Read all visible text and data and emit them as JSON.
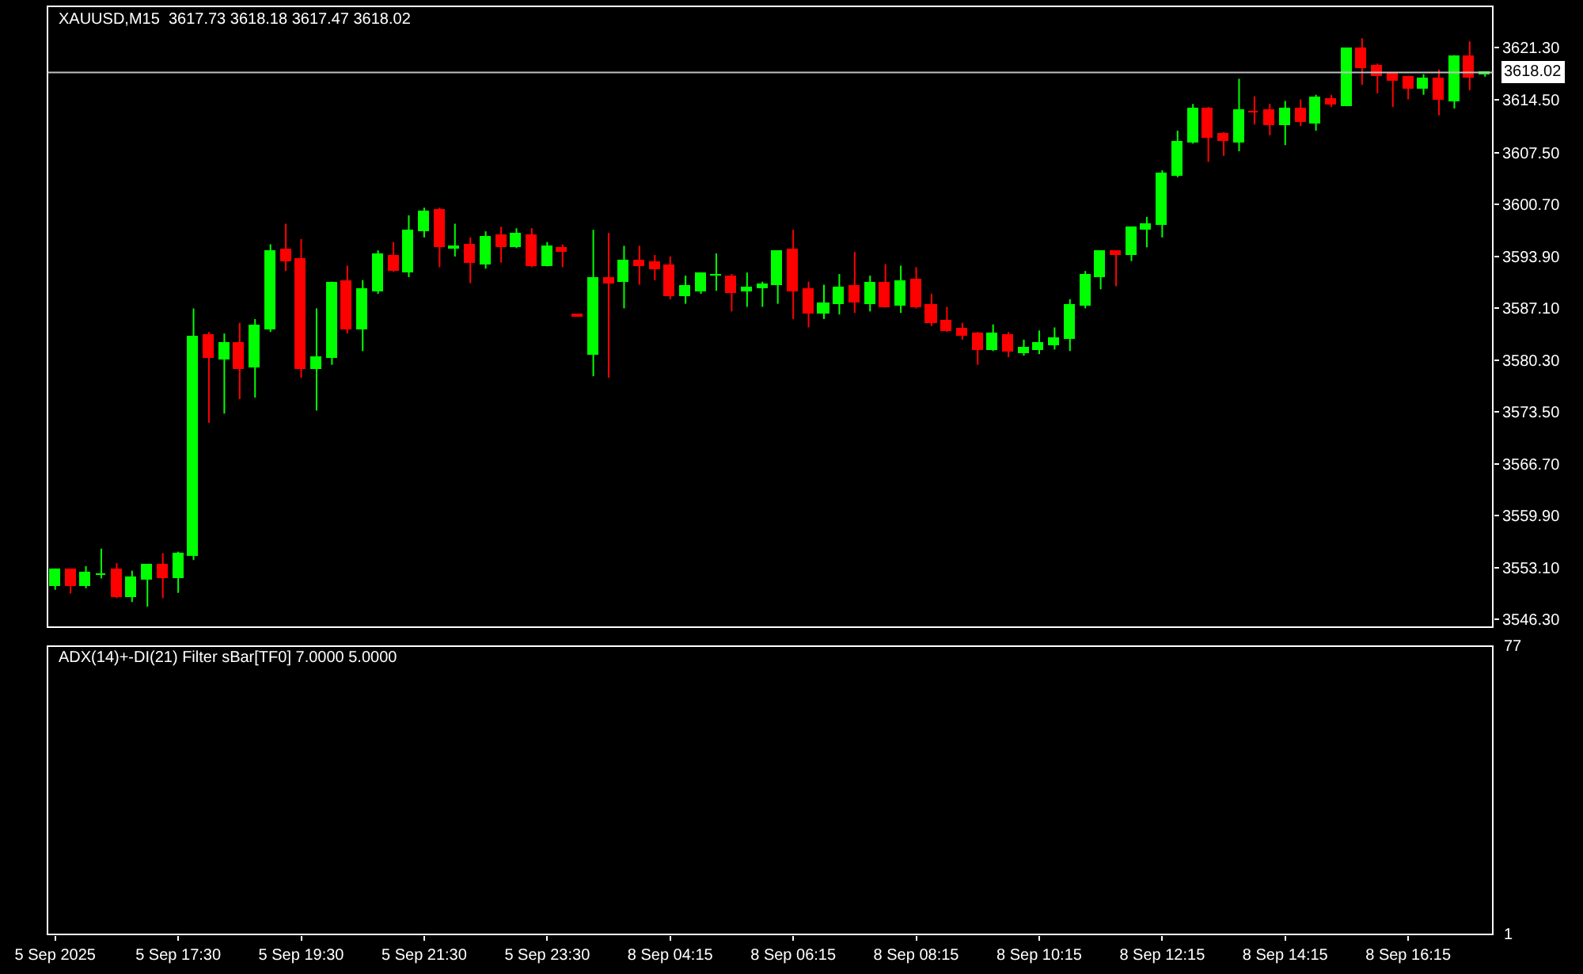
{
  "chart_data": [
    {
      "type": "candlestick",
      "title": "XAUUSD,M15  3617.73 3618.18 3617.47 3618.02",
      "grid": false,
      "colors": [
        "#00ff00",
        "#ff0000",
        "#00ff00",
        "#00ff00",
        "#ff0000",
        "#00ff00",
        "#00ff00",
        "#ff0000",
        "#00ff00",
        "#00ff00",
        "#ff0000",
        "#00ff00",
        "#ff0000",
        "#00ff00",
        "#00ff00",
        "#ff0000",
        "#ff0000",
        "#00ff00",
        "#00ff00",
        "#ff0000",
        "#00ff00",
        "#00ff00",
        "#ff0000",
        "#00ff00",
        "#00ff00",
        "#ff0000",
        "#00ff00",
        "#ff0000",
        "#00ff00",
        "#ff0000",
        "#00ff00",
        "#ff0000",
        "#00ff00",
        "#ff0000",
        "#ff0000",
        "#00ff00",
        "#ff0000",
        "#00ff00",
        "#ff0000",
        "#ff0000",
        "#ff0000",
        "#00ff00",
        "#00ff00",
        "#00ff00",
        "#ff0000",
        "#00ff00",
        "#00ff00",
        "#00ff00",
        "#ff0000",
        "#ff0000",
        "#00ff00",
        "#00ff00",
        "#ff0000",
        "#00ff00",
        "#ff0000",
        "#00ff00",
        "#ff0000",
        "#ff0000",
        "#ff0000",
        "#ff0000",
        "#ff0000",
        "#00ff00",
        "#ff0000",
        "#00ff00",
        "#00ff00",
        "#00ff00",
        "#00ff00",
        "#00ff00",
        "#00ff00",
        "#ff0000",
        "#00ff00",
        "#00ff00",
        "#00ff00",
        "#00ff00",
        "#00ff00",
        "#ff0000",
        "#ff0000",
        "#00ff00",
        "#ff0000",
        "#ff0000",
        "#00ff00",
        "#ff0000",
        "#00ff00",
        "#ff0000",
        "#00ff00",
        "#ff0000",
        "#ff0000",
        "#ff0000",
        "#ff0000",
        "#00ff00",
        "#ff0000",
        "#00ff00",
        "#ff0000",
        "#00ff00"
      ],
      "categories": [
        null,
        null,
        null,
        null,
        null,
        null,
        null,
        null,
        null,
        null,
        null,
        null,
        null,
        null,
        null,
        null,
        null,
        null,
        null,
        null,
        null,
        null,
        null,
        null,
        null,
        null,
        null,
        null,
        null,
        null,
        null,
        null,
        null,
        null,
        null,
        null,
        null,
        null,
        null,
        null,
        null,
        null,
        null,
        null,
        null,
        null,
        null,
        null,
        null,
        null,
        null,
        null,
        null,
        null,
        null,
        null,
        null,
        null,
        null,
        null,
        null,
        null,
        null,
        null,
        null,
        null,
        null,
        null,
        null,
        null,
        null,
        null,
        null,
        null,
        null,
        null,
        null,
        null,
        null,
        null,
        null,
        null,
        null,
        null,
        null,
        null,
        null,
        null,
        null,
        null,
        null,
        null,
        null,
        null
      ],
      "ohlc": [
        [
          3550.8,
          3553.0,
          3550.2,
          3552.8
        ],
        [
          3552.7,
          3552.7,
          3549.7,
          3550.6
        ],
        [
          3550.6,
          3553.3,
          3550.4,
          3552.3
        ],
        [
          3552.1,
          3555.6,
          3551.7,
          3552.2
        ],
        [
          3552.7,
          3553.7,
          3549.1,
          3549.2
        ],
        [
          3549.2,
          3552.7,
          3548.6,
          3551.7
        ],
        [
          3551.5,
          3553.3,
          3548.0,
          3553.3
        ],
        [
          3553.5,
          3555.0,
          3549.1,
          3551.7
        ],
        [
          3551.7,
          3555.2,
          3549.8,
          3554.8
        ],
        [
          3554.6,
          3587.1,
          3554.1,
          3583.4
        ],
        [
          3583.6,
          3584.0,
          3572.1,
          3580.5
        ],
        [
          3580.3,
          3583.8,
          3573.3,
          3582.4
        ],
        [
          3582.4,
          3585.2,
          3575.2,
          3579.1
        ],
        [
          3579.3,
          3585.7,
          3575.4,
          3584.8
        ],
        [
          3584.4,
          3595.5,
          3584.0,
          3594.5
        ],
        [
          3594.7,
          3598.2,
          3592.0,
          3593.3
        ],
        [
          3593.5,
          3596.2,
          3578.0,
          3579.1
        ],
        [
          3579.1,
          3587.1,
          3573.7,
          3580.7
        ],
        [
          3580.5,
          3590.6,
          3579.7,
          3590.4
        ],
        [
          3590.6,
          3592.7,
          3583.8,
          3584.4
        ],
        [
          3584.4,
          3590.8,
          3581.5,
          3589.6
        ],
        [
          3589.4,
          3594.7,
          3589.0,
          3594.1
        ],
        [
          3593.9,
          3595.8,
          3591.9,
          3592.0
        ],
        [
          3591.8,
          3599.3,
          3591.2,
          3597.2
        ],
        [
          3597.2,
          3600.3,
          3596.4,
          3599.7
        ],
        [
          3599.9,
          3600.3,
          3592.5,
          3595.1
        ],
        [
          3595.0,
          3598.2,
          3593.9,
          3595.1
        ],
        [
          3595.3,
          3596.4,
          3590.4,
          3593.1
        ],
        [
          3592.9,
          3597.2,
          3592.3,
          3596.4
        ],
        [
          3596.6,
          3597.8,
          3593.1,
          3595.1
        ],
        [
          3595.1,
          3597.6,
          3595.0,
          3596.8
        ],
        [
          3596.6,
          3597.6,
          3592.5,
          3592.7
        ],
        [
          3592.7,
          3595.8,
          3592.6,
          3595.1
        ],
        [
          3594.9,
          3595.5,
          3592.5,
          3594.6
        ],
        [
          3586.2,
          3586.2,
          3586.1,
          3586.1
        ],
        [
          3581.1,
          3597.4,
          3578.2,
          3591.0
        ],
        [
          3591.0,
          3597.0,
          3578.0,
          3590.4
        ],
        [
          3590.6,
          3595.3,
          3587.1,
          3593.3
        ],
        [
          3593.3,
          3595.3,
          3590.2,
          3592.7
        ],
        [
          3593.1,
          3594.1,
          3590.8,
          3592.3
        ],
        [
          3592.7,
          3593.9,
          3588.3,
          3588.8
        ],
        [
          3588.8,
          3591.4,
          3587.7,
          3590.0
        ],
        [
          3589.4,
          3591.6,
          3589.0,
          3591.6
        ],
        [
          3591.3,
          3594.3,
          3589.4,
          3591.4
        ],
        [
          3591.2,
          3591.6,
          3586.7,
          3589.2
        ],
        [
          3589.4,
          3591.8,
          3587.3,
          3589.8
        ],
        [
          3589.8,
          3590.6,
          3587.3,
          3590.2
        ],
        [
          3590.2,
          3594.7,
          3587.7,
          3594.5
        ],
        [
          3594.7,
          3597.4,
          3585.7,
          3589.4
        ],
        [
          3589.6,
          3590.6,
          3584.6,
          3586.5
        ],
        [
          3586.5,
          3590.2,
          3585.7,
          3587.7
        ],
        [
          3587.7,
          3591.6,
          3586.3,
          3589.8
        ],
        [
          3590.0,
          3594.5,
          3586.5,
          3587.9
        ],
        [
          3587.7,
          3591.4,
          3586.7,
          3590.4
        ],
        [
          3590.4,
          3592.9,
          3587.2,
          3587.3
        ],
        [
          3587.5,
          3592.7,
          3586.5,
          3590.6
        ],
        [
          3590.8,
          3592.5,
          3587.1,
          3587.3
        ],
        [
          3587.5,
          3589.0,
          3584.8,
          3585.2
        ],
        [
          3585.4,
          3587.3,
          3584.0,
          3584.2
        ],
        [
          3584.4,
          3585.2,
          3583.0,
          3583.6
        ],
        [
          3583.8,
          3584.0,
          3579.7,
          3581.7
        ],
        [
          3581.7,
          3585.0,
          3581.5,
          3583.8
        ],
        [
          3583.6,
          3584.0,
          3580.7,
          3581.5
        ],
        [
          3581.3,
          3583.0,
          3580.9,
          3581.9
        ],
        [
          3581.7,
          3584.2,
          3581.1,
          3582.4
        ],
        [
          3582.2,
          3584.6,
          3581.7,
          3583.0
        ],
        [
          3583.0,
          3588.3,
          3581.5,
          3587.5
        ],
        [
          3587.5,
          3592.0,
          3587.1,
          3591.4
        ],
        [
          3591.2,
          3594.7,
          3589.6,
          3594.5
        ],
        [
          3594.5,
          3594.7,
          3590.0,
          3594.1
        ],
        [
          3594.1,
          3597.6,
          3593.3,
          3597.6
        ],
        [
          3597.4,
          3599.1,
          3595.1,
          3598.0
        ],
        [
          3598.0,
          3605.2,
          3596.4,
          3604.6
        ],
        [
          3604.4,
          3610.4,
          3604.3,
          3608.9
        ],
        [
          3608.9,
          3613.9,
          3608.7,
          3613.3
        ],
        [
          3613.3,
          3613.5,
          3606.3,
          3609.4
        ],
        [
          3609.8,
          3610.2,
          3607.1,
          3609.1
        ],
        [
          3608.9,
          3617.2,
          3607.7,
          3612.9
        ],
        [
          3612.8,
          3614.9,
          3611.2,
          3612.7
        ],
        [
          3612.9,
          3613.9,
          3609.8,
          3611.2
        ],
        [
          3611.2,
          3614.3,
          3608.5,
          3613.1
        ],
        [
          3613.1,
          3614.5,
          3611.0,
          3611.6
        ],
        [
          3611.4,
          3615.1,
          3610.4,
          3614.7
        ],
        [
          3614.5,
          3615.1,
          3613.5,
          3613.9
        ],
        [
          3613.7,
          3621.3,
          3613.6,
          3621.1
        ],
        [
          3621.1,
          3622.5,
          3616.4,
          3618.6
        ],
        [
          3618.8,
          3619.2,
          3615.3,
          3617.6
        ],
        [
          3617.8,
          3617.8,
          3613.5,
          3617.0
        ],
        [
          3617.4,
          3617.6,
          3614.5,
          3615.9
        ],
        [
          3615.9,
          3617.8,
          3615.1,
          3617.2
        ],
        [
          3617.2,
          3618.4,
          3612.4,
          3614.5
        ],
        [
          3614.3,
          3620.3,
          3613.3,
          3620.1
        ],
        [
          3620.1,
          3622.1,
          3615.7,
          3617.4
        ],
        [
          3617.73,
          3618.18,
          3617.47,
          3618.02
        ]
      ],
      "ylim": [
        3545.3,
        3626.7
      ],
      "yticks": [
        {
          "value": 3546.3,
          "label": "3546.30"
        },
        {
          "value": 3553.1,
          "label": "3553.10"
        },
        {
          "value": 3559.9,
          "label": "3559.90"
        },
        {
          "value": 3566.7,
          "label": "3566.70"
        },
        {
          "value": 3573.5,
          "label": "3573.50"
        },
        {
          "value": 3580.3,
          "label": "3580.30"
        },
        {
          "value": 3587.1,
          "label": "3587.10"
        },
        {
          "value": 3593.9,
          "label": "3593.90"
        },
        {
          "value": 3600.7,
          "label": "3600.70"
        },
        {
          "value": 3607.5,
          "label": "3607.50"
        },
        {
          "value": 3614.5,
          "label": "3614.50"
        },
        {
          "value": 3621.3,
          "label": "3621.30"
        }
      ],
      "ref_lines": [
        {
          "axis": "y",
          "value": 3618.02,
          "label": "3618.02",
          "color": "#c0c0c0"
        }
      ]
    },
    {
      "type": "other",
      "title": "ADX(14)+-DI(21) Filter sBar[TF0] 7.0000 5.0000",
      "categories": [
        "5 Sep 2025",
        null,
        null,
        null,
        null,
        null,
        null,
        null,
        "5 Sep 17:30",
        null,
        null,
        null,
        null,
        null,
        null,
        null,
        "5 Sep 19:30",
        null,
        null,
        null,
        null,
        null,
        null,
        null,
        "5 Sep 21:30",
        null,
        null,
        null,
        null,
        null,
        null,
        null,
        "5 Sep 23:30",
        null,
        null,
        null,
        null,
        null,
        null,
        null,
        "8 Sep 04:15",
        null,
        null,
        null,
        null,
        null,
        null,
        null,
        "8 Sep 06:15",
        null,
        null,
        null,
        null,
        null,
        null,
        null,
        "8 Sep 08:15",
        null,
        null,
        null,
        null,
        null,
        null,
        null,
        "8 Sep 10:15",
        null,
        null,
        null,
        null,
        null,
        null,
        null,
        "8 Sep 12:15",
        null,
        null,
        null,
        null,
        null,
        null,
        null,
        "8 Sep 14:15",
        null,
        null,
        null,
        null,
        null,
        null,
        null,
        "8 Sep 16:15",
        null,
        null,
        null,
        null,
        null
      ],
      "annotations": [
        "77",
        "1"
      ]
    }
  ]
}
